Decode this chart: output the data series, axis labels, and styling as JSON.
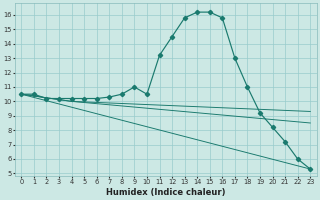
{
  "xlabel": "Humidex (Indice chaleur)",
  "bg_color": "#cce8e4",
  "line_color": "#1a7a6e",
  "grid_color": "#99cccc",
  "xlim": [
    -0.5,
    23.5
  ],
  "ylim": [
    4.8,
    16.8
  ],
  "yticks": [
    5,
    6,
    7,
    8,
    9,
    10,
    11,
    12,
    13,
    14,
    15,
    16
  ],
  "xticks": [
    0,
    1,
    2,
    3,
    4,
    5,
    6,
    7,
    8,
    9,
    10,
    11,
    12,
    13,
    14,
    15,
    16,
    17,
    18,
    19,
    20,
    21,
    22,
    23
  ],
  "main_x": [
    0,
    1,
    2,
    3,
    4,
    5,
    6,
    7,
    8,
    9,
    10,
    11,
    12,
    13,
    14,
    15,
    16,
    17,
    18,
    19,
    20,
    21,
    22,
    23
  ],
  "main_y": [
    10.5,
    10.5,
    10.2,
    10.2,
    10.2,
    10.2,
    10.2,
    10.3,
    10.5,
    11.0,
    10.5,
    13.2,
    14.5,
    15.8,
    16.2,
    16.2,
    15.8,
    13.0,
    11.0,
    9.2,
    8.2,
    7.2,
    6.0,
    5.3
  ],
  "line2_x": [
    0,
    23
  ],
  "line2_y": [
    10.5,
    5.3
  ],
  "line3_x": [
    0,
    4,
    23
  ],
  "line3_y": [
    10.5,
    10.0,
    8.5
  ],
  "line4_x": [
    0,
    4,
    23
  ],
  "line4_y": [
    10.5,
    10.0,
    9.3
  ],
  "xlabel_fontsize": 6,
  "tick_fontsize": 4.8,
  "linewidth": 0.85,
  "marker_size": 2.2
}
